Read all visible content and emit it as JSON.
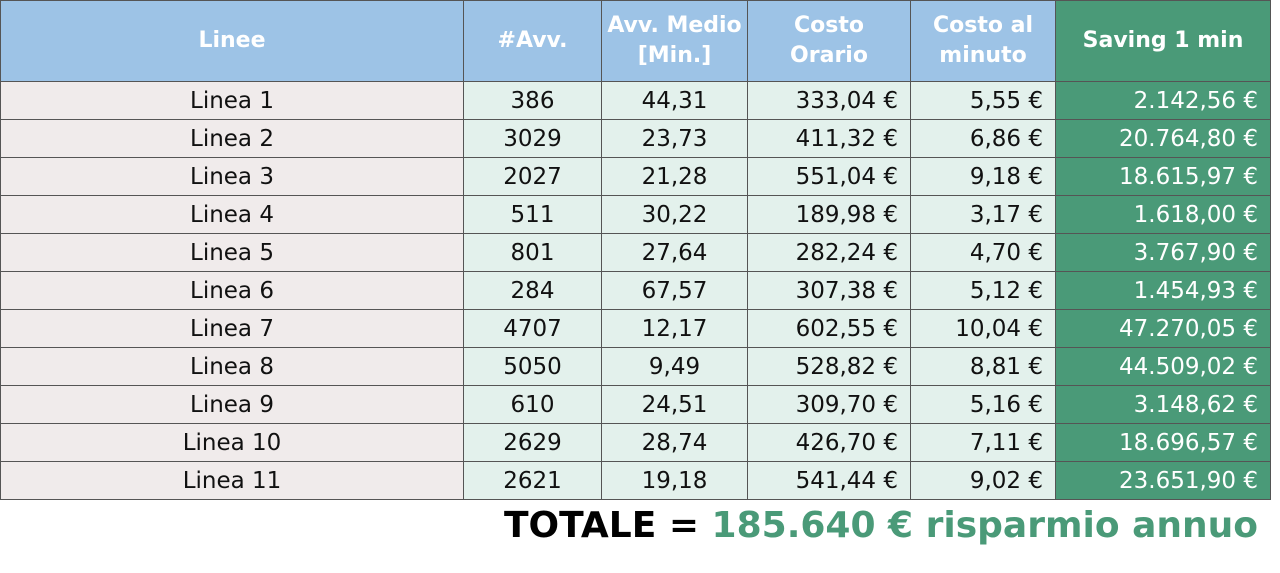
{
  "table": {
    "headers": [
      [
        "Linee"
      ],
      [
        "#Avv."
      ],
      [
        "Avv. Medio",
        "[Min.]"
      ],
      [
        "Costo",
        "Orario"
      ],
      [
        "Costo al",
        "minuto"
      ],
      [
        "Saving 1 min"
      ]
    ],
    "rows": [
      [
        "Linea 1",
        "386",
        "44,31",
        "333,04 €",
        "5,55 €",
        "2.142,56 €"
      ],
      [
        "Linea 2",
        "3029",
        "23,73",
        "411,32 €",
        "6,86 €",
        "20.764,80 €"
      ],
      [
        "Linea 3",
        "2027",
        "21,28",
        "551,04 €",
        "9,18 €",
        "18.615,97 €"
      ],
      [
        "Linea 4",
        "511",
        "30,22",
        "189,98 €",
        "3,17 €",
        "1.618,00 €"
      ],
      [
        "Linea 5",
        "801",
        "27,64",
        "282,24 €",
        "4,70 €",
        "3.767,90 €"
      ],
      [
        "Linea 6",
        "284",
        "67,57",
        "307,38 €",
        "5,12 €",
        "1.454,93 €"
      ],
      [
        "Linea 7",
        "4707",
        "12,17",
        "602,55 €",
        "10,04 €",
        "47.270,05 €"
      ],
      [
        "Linea 8",
        "5050",
        "9,49",
        "528,82 €",
        "8,81 €",
        "44.509,02 €"
      ],
      [
        "Linea 9",
        "610",
        "24,51",
        "309,70 €",
        "5,16 €",
        "3.148,62 €"
      ],
      [
        "Linea 10",
        "2629",
        "28,74",
        "426,70 €",
        "7,11 €",
        "18.696,57 €"
      ],
      [
        "Linea 11",
        "2621",
        "19,18",
        "541,44 €",
        "9,02 €",
        "23.651,90 €"
      ]
    ]
  },
  "total": {
    "label": "TOTALE =",
    "value": "185.640 € risparmio annuo"
  }
}
